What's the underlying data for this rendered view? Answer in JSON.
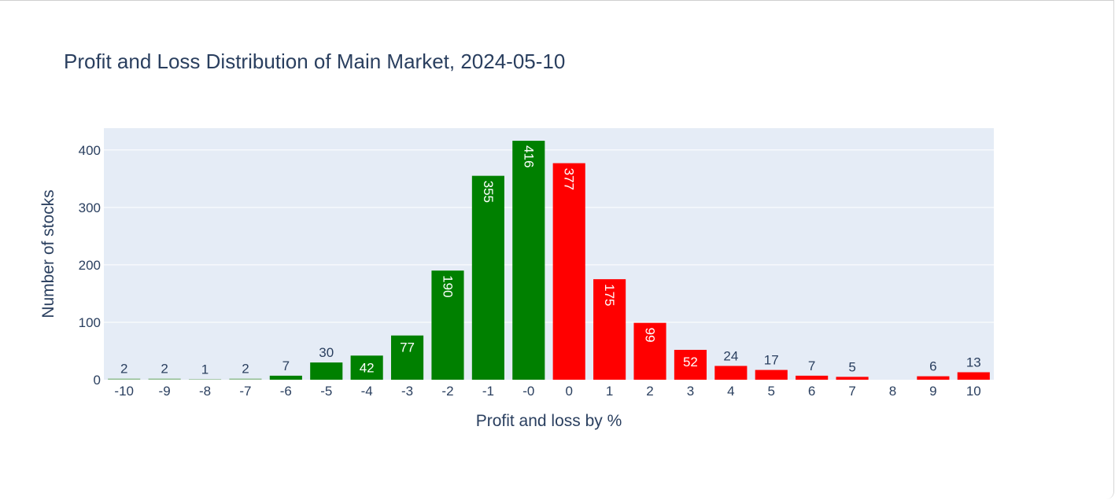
{
  "chart_data": {
    "type": "bar",
    "title": "Profit and Loss Distribution of Main Market, 2024-05-10",
    "xlabel": "Profit and loss by %",
    "ylabel": "Number of stocks",
    "categories": [
      "-10",
      "-9",
      "-8",
      "-7",
      "-6",
      "-5",
      "-4",
      "-3",
      "-2",
      "-1",
      "-0",
      "0",
      "1",
      "2",
      "3",
      "4",
      "5",
      "6",
      "7",
      "8",
      "9",
      "10"
    ],
    "values": [
      2,
      2,
      1,
      2,
      7,
      30,
      42,
      77,
      190,
      355,
      416,
      377,
      175,
      99,
      52,
      24,
      17,
      7,
      5,
      0,
      6,
      13
    ],
    "bar_labels": [
      "2",
      "2",
      "1",
      "2",
      "7",
      "30",
      "42",
      "77",
      "190",
      "355",
      "416",
      "377",
      "175",
      "99",
      "52",
      "24",
      "17",
      "7",
      "5",
      "",
      "6",
      "13"
    ],
    "colors": [
      "#8fbc8f",
      "#8fbc8f",
      "#8fbc8f",
      "#8fbc8f",
      "#008000",
      "#008000",
      "#008000",
      "#008000",
      "#008000",
      "#008000",
      "#008000",
      "#ff0000",
      "#ff0000",
      "#ff0000",
      "#ff0000",
      "#ff0000",
      "#ff0000",
      "#ff0000",
      "#ff0000",
      "#ff0000",
      "#ff0000",
      "#ff0000"
    ],
    "yticks": [
      0,
      100,
      200,
      300,
      400
    ],
    "ylim": [
      0,
      438
    ],
    "grid": true,
    "plot_background": "#e5ecf6",
    "text_color": "#2a3f5f"
  }
}
